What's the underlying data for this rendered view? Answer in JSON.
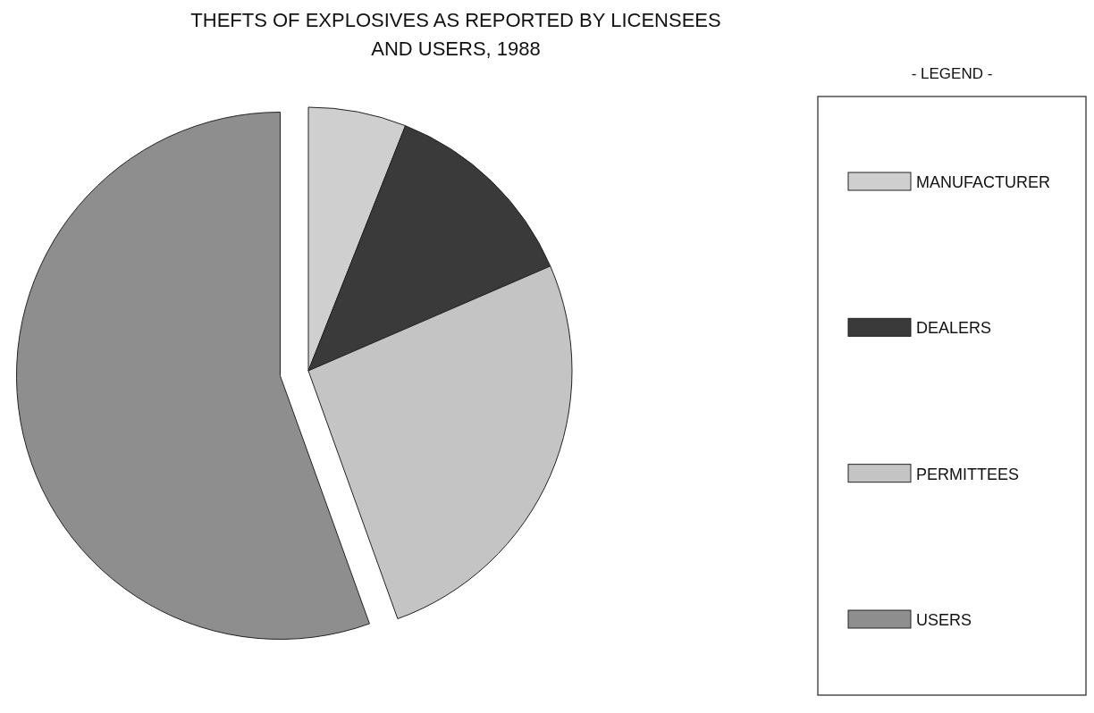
{
  "chart_data": {
    "type": "pie",
    "title": "THEFTS OF EXPLOSIVES AS REPORTED BY LICENSEES\nAND USERS, 1988",
    "legend_title": "- LEGEND -",
    "legend": "right",
    "categories": [
      "MANUFACTURER",
      "DEALERS",
      "PERMITTEES",
      "USERS"
    ],
    "values": [
      6,
      12.5,
      26,
      55.5
    ],
    "colors": [
      "#cfcfcf",
      "#3a3a3a",
      "#c4c4c4",
      "#8e8e8e"
    ]
  }
}
